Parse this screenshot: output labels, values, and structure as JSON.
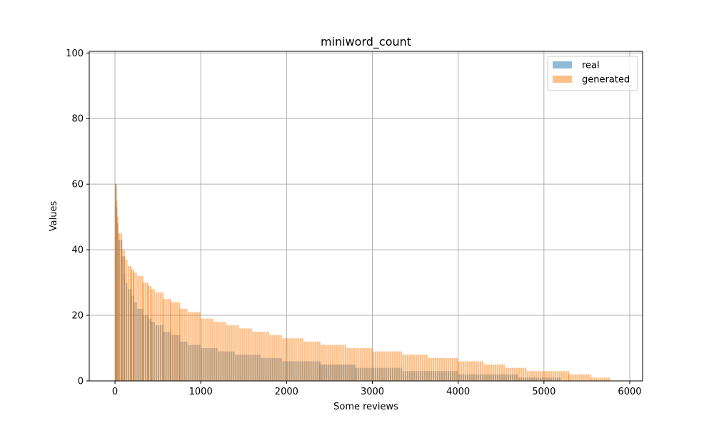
{
  "chart_data": {
    "type": "bar",
    "title": "miniword_count",
    "xlabel": "Some reviews",
    "ylabel": "Values",
    "xlim": [
      -300,
      6150
    ],
    "ylim": [
      0,
      100.5
    ],
    "xticks": [
      0,
      1000,
      2000,
      3000,
      4000,
      5000,
      6000
    ],
    "yticks": [
      0,
      20,
      40,
      60,
      80,
      100
    ],
    "grid": true,
    "legend_position": "top-right",
    "bar_width": 0.8,
    "series": [
      {
        "name": "real",
        "color": "#1f77b4",
        "alpha": 0.5,
        "steps": [
          {
            "x_start": 0,
            "x_end": 8,
            "value": 60
          },
          {
            "x_start": 8,
            "x_end": 20,
            "value": 53
          },
          {
            "x_start": 20,
            "x_end": 40,
            "value": 48
          },
          {
            "x_start": 40,
            "x_end": 70,
            "value": 43
          },
          {
            "x_start": 70,
            "x_end": 100,
            "value": 38
          },
          {
            "x_start": 100,
            "x_end": 125,
            "value": 33
          },
          {
            "x_start": 125,
            "x_end": 150,
            "value": 30
          },
          {
            "x_start": 150,
            "x_end": 180,
            "value": 28
          },
          {
            "x_start": 180,
            "x_end": 210,
            "value": 26
          },
          {
            "x_start": 210,
            "x_end": 260,
            "value": 24
          },
          {
            "x_start": 260,
            "x_end": 320,
            "value": 22
          },
          {
            "x_start": 320,
            "x_end": 380,
            "value": 20
          },
          {
            "x_start": 380,
            "x_end": 420,
            "value": 19
          },
          {
            "x_start": 420,
            "x_end": 470,
            "value": 18
          },
          {
            "x_start": 470,
            "x_end": 560,
            "value": 17
          },
          {
            "x_start": 560,
            "x_end": 640,
            "value": 15
          },
          {
            "x_start": 640,
            "x_end": 750,
            "value": 14
          },
          {
            "x_start": 750,
            "x_end": 850,
            "value": 12
          },
          {
            "x_start": 850,
            "x_end": 1000,
            "value": 11
          },
          {
            "x_start": 1000,
            "x_end": 1200,
            "value": 10
          },
          {
            "x_start": 1200,
            "x_end": 1400,
            "value": 9
          },
          {
            "x_start": 1400,
            "x_end": 1700,
            "value": 8
          },
          {
            "x_start": 1700,
            "x_end": 1950,
            "value": 7
          },
          {
            "x_start": 1950,
            "x_end": 2380,
            "value": 6
          },
          {
            "x_start": 2380,
            "x_end": 2800,
            "value": 5
          },
          {
            "x_start": 2800,
            "x_end": 3350,
            "value": 4
          },
          {
            "x_start": 3350,
            "x_end": 4000,
            "value": 3
          },
          {
            "x_start": 4000,
            "x_end": 4700,
            "value": 2
          },
          {
            "x_start": 4700,
            "x_end": 5200,
            "value": 1
          }
        ]
      },
      {
        "name": "generated",
        "color": "#ff7f0e",
        "alpha": 0.5,
        "steps": [
          {
            "x_start": 0,
            "x_end": 8,
            "value": 60
          },
          {
            "x_start": 8,
            "x_end": 20,
            "value": 55
          },
          {
            "x_start": 20,
            "x_end": 40,
            "value": 50
          },
          {
            "x_start": 40,
            "x_end": 70,
            "value": 45
          },
          {
            "x_start": 70,
            "x_end": 100,
            "value": 40
          },
          {
            "x_start": 100,
            "x_end": 125,
            "value": 38
          },
          {
            "x_start": 125,
            "x_end": 150,
            "value": 37
          },
          {
            "x_start": 150,
            "x_end": 180,
            "value": 35
          },
          {
            "x_start": 180,
            "x_end": 210,
            "value": 34
          },
          {
            "x_start": 210,
            "x_end": 260,
            "value": 33
          },
          {
            "x_start": 260,
            "x_end": 320,
            "value": 32
          },
          {
            "x_start": 320,
            "x_end": 380,
            "value": 30
          },
          {
            "x_start": 380,
            "x_end": 420,
            "value": 29
          },
          {
            "x_start": 420,
            "x_end": 470,
            "value": 28
          },
          {
            "x_start": 470,
            "x_end": 560,
            "value": 27
          },
          {
            "x_start": 560,
            "x_end": 640,
            "value": 25
          },
          {
            "x_start": 640,
            "x_end": 750,
            "value": 24
          },
          {
            "x_start": 750,
            "x_end": 850,
            "value": 22
          },
          {
            "x_start": 850,
            "x_end": 1000,
            "value": 21
          },
          {
            "x_start": 1000,
            "x_end": 1150,
            "value": 19
          },
          {
            "x_start": 1150,
            "x_end": 1300,
            "value": 18
          },
          {
            "x_start": 1300,
            "x_end": 1450,
            "value": 17
          },
          {
            "x_start": 1450,
            "x_end": 1600,
            "value": 16
          },
          {
            "x_start": 1600,
            "x_end": 1800,
            "value": 15
          },
          {
            "x_start": 1800,
            "x_end": 1950,
            "value": 14
          },
          {
            "x_start": 1950,
            "x_end": 2200,
            "value": 13
          },
          {
            "x_start": 2200,
            "x_end": 2400,
            "value": 12
          },
          {
            "x_start": 2400,
            "x_end": 2700,
            "value": 11
          },
          {
            "x_start": 2700,
            "x_end": 3000,
            "value": 10
          },
          {
            "x_start": 3000,
            "x_end": 3350,
            "value": 9
          },
          {
            "x_start": 3350,
            "x_end": 3650,
            "value": 8
          },
          {
            "x_start": 3650,
            "x_end": 4000,
            "value": 7
          },
          {
            "x_start": 4000,
            "x_end": 4300,
            "value": 6
          },
          {
            "x_start": 4300,
            "x_end": 4550,
            "value": 5
          },
          {
            "x_start": 4550,
            "x_end": 4800,
            "value": 4
          },
          {
            "x_start": 4800,
            "x_end": 5280,
            "value": 3
          },
          {
            "x_start": 5280,
            "x_end": 5550,
            "value": 2
          },
          {
            "x_start": 5550,
            "x_end": 5770,
            "value": 1
          }
        ]
      }
    ]
  }
}
